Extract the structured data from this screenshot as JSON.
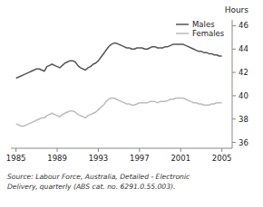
{
  "chart_data": {
    "type": "line",
    "x": [
      1985.0,
      1985.25,
      1985.5,
      1985.75,
      1986.0,
      1986.25,
      1986.5,
      1986.75,
      1987.0,
      1987.25,
      1987.5,
      1987.75,
      1988.0,
      1988.25,
      1988.5,
      1988.75,
      1989.0,
      1989.25,
      1989.5,
      1989.75,
      1990.0,
      1990.25,
      1990.5,
      1990.75,
      1991.0,
      1991.25,
      1991.5,
      1991.75,
      1992.0,
      1992.25,
      1992.5,
      1992.75,
      1993.0,
      1993.25,
      1993.5,
      1993.75,
      1994.0,
      1994.25,
      1994.5,
      1994.75,
      1995.0,
      1995.25,
      1995.5,
      1995.75,
      1996.0,
      1996.25,
      1996.5,
      1996.75,
      1997.0,
      1997.25,
      1997.5,
      1997.75,
      1998.0,
      1998.25,
      1998.5,
      1998.75,
      1999.0,
      1999.25,
      1999.5,
      1999.75,
      2000.0,
      2000.25,
      2000.5,
      2000.75,
      2001.0,
      2001.25,
      2001.5,
      2001.75,
      2002.0,
      2002.25,
      2002.5,
      2002.75,
      2003.0,
      2003.25,
      2003.5,
      2003.75,
      2004.0,
      2004.25,
      2004.5,
      2004.75,
      2005.0
    ],
    "series": [
      {
        "name": "Males",
        "color": "#555555",
        "values": [
          41.5,
          41.6,
          41.7,
          41.8,
          41.9,
          42.0,
          42.1,
          42.2,
          42.3,
          42.3,
          42.2,
          42.1,
          42.5,
          42.6,
          42.7,
          42.6,
          42.5,
          42.4,
          42.6,
          42.8,
          42.9,
          43.0,
          43.0,
          42.9,
          42.6,
          42.4,
          42.3,
          42.2,
          42.4,
          42.5,
          42.7,
          42.8,
          43.0,
          43.3,
          43.6,
          43.9,
          44.2,
          44.4,
          44.5,
          44.5,
          44.4,
          44.3,
          44.2,
          44.1,
          44.1,
          44.0,
          44.0,
          44.1,
          44.1,
          44.1,
          44.0,
          44.0,
          44.1,
          44.2,
          44.2,
          44.1,
          44.1,
          44.1,
          44.2,
          44.2,
          44.3,
          44.4,
          44.4,
          44.4,
          44.4,
          44.4,
          44.3,
          44.2,
          44.1,
          44.0,
          43.9,
          43.8,
          43.8,
          43.7,
          43.7,
          43.6,
          43.6,
          43.5,
          43.5,
          43.4,
          43.4
        ]
      },
      {
        "name": "Females",
        "color": "#bbbbbb",
        "values": [
          37.6,
          37.5,
          37.4,
          37.4,
          37.5,
          37.6,
          37.7,
          37.8,
          37.9,
          38.0,
          38.1,
          38.1,
          38.3,
          38.4,
          38.5,
          38.4,
          38.3,
          38.2,
          38.4,
          38.5,
          38.6,
          38.7,
          38.7,
          38.6,
          38.4,
          38.3,
          38.2,
          38.1,
          38.3,
          38.4,
          38.5,
          38.6,
          38.8,
          39.0,
          39.2,
          39.5,
          39.7,
          39.8,
          39.8,
          39.7,
          39.6,
          39.5,
          39.4,
          39.3,
          39.3,
          39.2,
          39.2,
          39.3,
          39.4,
          39.4,
          39.4,
          39.4,
          39.5,
          39.5,
          39.5,
          39.4,
          39.5,
          39.5,
          39.5,
          39.6,
          39.7,
          39.7,
          39.8,
          39.8,
          39.8,
          39.8,
          39.7,
          39.6,
          39.5,
          39.4,
          39.4,
          39.3,
          39.3,
          39.2,
          39.2,
          39.2,
          39.3,
          39.3,
          39.4,
          39.4,
          39.4
        ]
      }
    ],
    "xlim": [
      1984.5,
      2006.0
    ],
    "xticks": [
      1985,
      1989,
      1993,
      1997,
      2001,
      2005
    ],
    "ylim": [
      35.5,
      46.5
    ],
    "yticks": [
      36,
      38,
      40,
      42,
      44,
      46
    ],
    "y_label": "Hours",
    "annotations": [
      "Source: Labour Force, Australia, Detailed - Electronic",
      "Delivery, quarterly (ABS cat. no. 6291.0.55.003)."
    ],
    "legend": "upper right",
    "grid": false
  }
}
